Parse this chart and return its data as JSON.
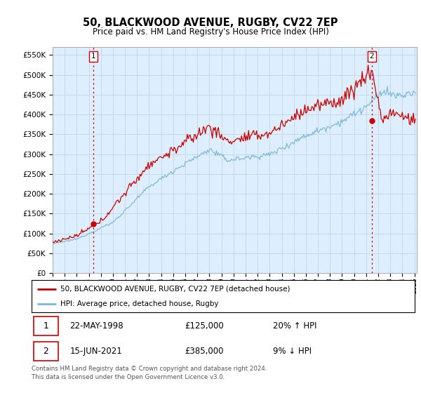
{
  "title": "50, BLACKWOOD AVENUE, RUGBY, CV22 7EP",
  "subtitle": "Price paid vs. HM Land Registry's House Price Index (HPI)",
  "ylabel_values": [
    0,
    50000,
    100000,
    150000,
    200000,
    250000,
    300000,
    350000,
    400000,
    450000,
    500000,
    550000
  ],
  "xlim_start": 1995.3,
  "xlim_end": 2025.2,
  "ylim_min": 0,
  "ylim_max": 570000,
  "sale1_year": 1998.38,
  "sale1_price": 125000,
  "sale1_label": "1",
  "sale2_year": 2021.46,
  "sale2_price": 385000,
  "sale2_label": "2",
  "legend_label1": "50, BLACKWOOD AVENUE, RUGBY, CV22 7EP (detached house)",
  "legend_label2": "HPI: Average price, detached house, Rugby",
  "footer": "Contains HM Land Registry data © Crown copyright and database right 2024.\nThis data is licensed under the Open Government Licence v3.0.",
  "hpi_color": "#7ab6d8",
  "price_color": "#cc0000",
  "grid_color": "#c8d8e8",
  "plot_bg_color": "#ddeeff",
  "dashed_line_color": "#cc0000",
  "marker_color": "#cc0000",
  "fig_bg_color": "#ffffff"
}
